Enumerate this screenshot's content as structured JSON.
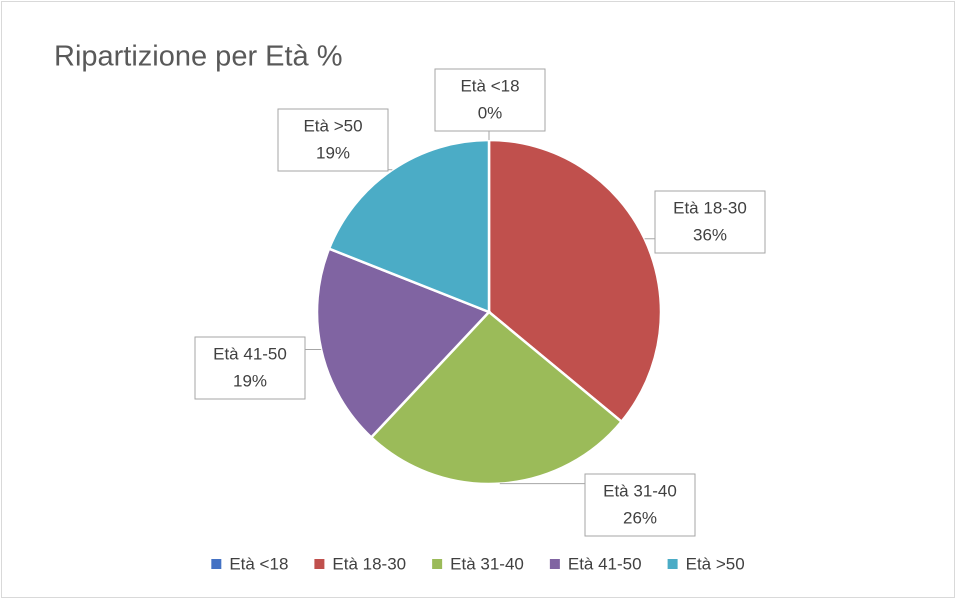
{
  "chart_data": {
    "type": "pie",
    "title": "Ripartizione per Età %",
    "categories": [
      "Età <18",
      "Età 18-30",
      "Età 31-40",
      "Età 41-50",
      "Età >50"
    ],
    "values": [
      0,
      36,
      26,
      19,
      19
    ],
    "value_labels": [
      "0%",
      "36%",
      "26%",
      "19%",
      "19%"
    ],
    "colors": [
      "#4472c4",
      "#c0504d",
      "#9bbb59",
      "#8064a2",
      "#4bacc6"
    ],
    "legend": "bottom"
  }
}
